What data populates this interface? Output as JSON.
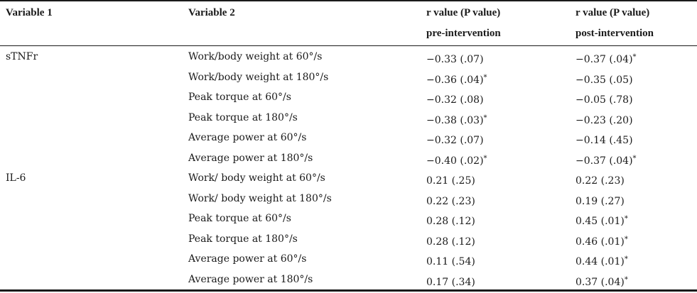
{
  "header": {
    "col1": "Variable 1",
    "col2": "Variable 2",
    "col3_line1": "r value (P value)",
    "col3_line2": "pre-intervention",
    "col4_line1": "r value (P value)",
    "col4_line2": "post-intervention"
  },
  "rows": [
    {
      "var1": "sTNFr",
      "var2": "Work/body weight at 60°/s",
      "pre": "−0.33 (.07)",
      "pre_sig": "",
      "post": "−0.37 (.04)",
      "post_sig": "*"
    },
    {
      "var1": "",
      "var2": "Work/body weight at 180°/s",
      "pre": "−0.36 (.04)",
      "pre_sig": "*",
      "post": "−0.35 (.05)",
      "post_sig": ""
    },
    {
      "var1": "",
      "var2": "Peak torque at 60°/s",
      "pre": "−0.32 (.08)",
      "pre_sig": "",
      "post": "−0.05 (.78)",
      "post_sig": ""
    },
    {
      "var1": "",
      "var2": "Peak torque at 180°/s",
      "pre": "−0.38 (.03)",
      "pre_sig": "*",
      "post": "−0.23 (.20)",
      "post_sig": ""
    },
    {
      "var1": "",
      "var2": "Average power at 60°/s",
      "pre": "−0.32 (.07)",
      "pre_sig": "",
      "post": "−0.14 (.45)",
      "post_sig": ""
    },
    {
      "var1": "",
      "var2": "Average power at 180°/s",
      "pre": "−0.40 (.02)",
      "pre_sig": "*",
      "post": "−0.37 (.04)",
      "post_sig": "*"
    },
    {
      "var1": "IL-6",
      "var2": "Work/ body weight at 60°/s",
      "pre": "0.21 (.25)",
      "pre_sig": "",
      "post": "0.22 (.23)",
      "post_sig": ""
    },
    {
      "var1": "",
      "var2": "Work/ body weight at 180°/s",
      "pre": "0.22 (.23)",
      "pre_sig": "",
      "post": "0.19 (.27)",
      "post_sig": ""
    },
    {
      "var1": "",
      "var2": "Peak torque at 60°/s",
      "pre": "0.28 (.12)",
      "pre_sig": "",
      "post": "0.45 (.01)",
      "post_sig": "*"
    },
    {
      "var1": "",
      "var2": "Peak torque at 180°/s",
      "pre": "0.28 (.12)",
      "pre_sig": "",
      "post": "0.46 (.01)",
      "post_sig": "*"
    },
    {
      "var1": "",
      "var2": "Average power at 60°/s",
      "pre": "0.11 (.54)",
      "pre_sig": "",
      "post": "0.44 (.01)",
      "post_sig": "*"
    },
    {
      "var1": "",
      "var2": "Average power at 180°/s",
      "pre": "0.17 (.34)",
      "pre_sig": "",
      "post": "0.37 (.04)",
      "post_sig": "*"
    }
  ]
}
